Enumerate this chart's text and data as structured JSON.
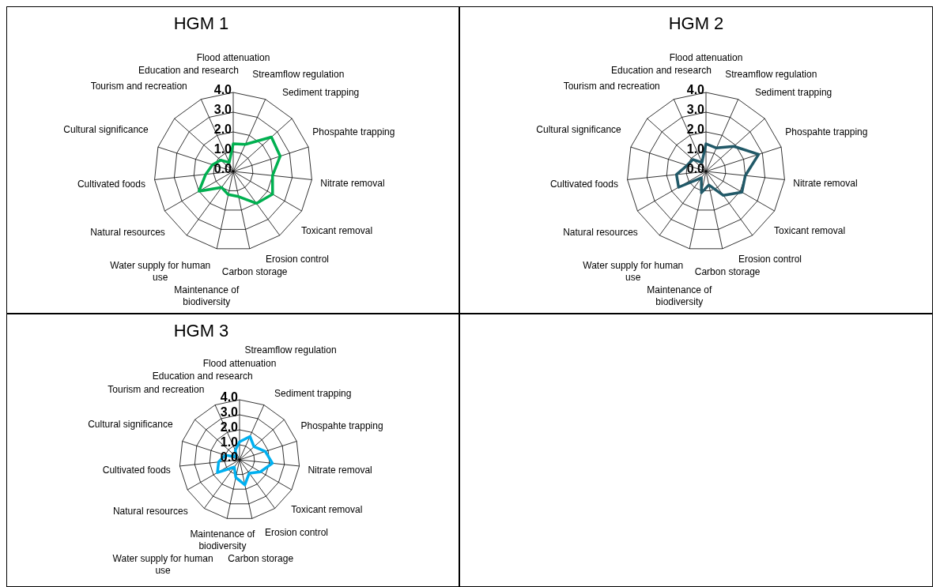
{
  "chart_data": [
    {
      "type": "radar",
      "title": "HGM 1",
      "categories": [
        "Flood attenuation",
        "Streamflow regulation",
        "Sediment trapping",
        "Phospahte trapping",
        "Nitrate removal",
        "Toxicant removal",
        "Erosion control",
        "Carbon storage",
        "Maintenance of biodiversity",
        "Water supply for human use",
        "Natural resources",
        "Cultivated foods",
        "Cultural significance",
        "Tourism and recreation",
        "Education and research"
      ],
      "series": [
        {
          "color": "#00b050",
          "values": [
            1.4,
            1.5,
            2.6,
            2.5,
            2.0,
            2.3,
            2.0,
            1.3,
            1.2,
            1.0,
            2.0,
            1.4,
            1.1,
            0.85,
            0.5
          ]
        }
      ],
      "ylim": [
        0,
        4
      ],
      "yticks": [
        {
          "value": 0,
          "label": "0.0"
        },
        {
          "value": 1,
          "label": "1.0"
        },
        {
          "value": 2,
          "label": "2.0"
        },
        {
          "value": 3,
          "label": "3.0"
        },
        {
          "value": 4,
          "label": "4.0"
        }
      ],
      "grid": true
    },
    {
      "type": "radar",
      "title": "HGM 2",
      "categories": [
        "Flood attenuation",
        "Streamflow regulation",
        "Sediment trapping",
        "Phospahte trapping",
        "Nitrate removal",
        "Toxicant removal",
        "Erosion control",
        "Carbon storage",
        "Maintenance of biodiversity",
        "Water supply for human use",
        "Natural resources",
        "Cultivated foods",
        "Cultural significance",
        "Tourism and recreation",
        "Education and research"
      ],
      "series": [
        {
          "color": "#215968",
          "values": [
            1.4,
            1.3,
            1.9,
            2.8,
            2.0,
            2.1,
            1.5,
            0.7,
            1.1,
            0.4,
            1.6,
            1.5,
            1.0,
            0.9,
            0.5
          ]
        }
      ],
      "ylim": [
        0,
        4
      ],
      "yticks": [
        {
          "value": 0,
          "label": "0.0"
        },
        {
          "value": 1,
          "label": "1.0"
        },
        {
          "value": 2,
          "label": "2.0"
        },
        {
          "value": 3,
          "label": "3.0"
        },
        {
          "value": 4,
          "label": "4.0"
        }
      ],
      "grid": true
    },
    {
      "type": "radar",
      "title": "HGM 3",
      "categories": [
        "Flood attenuation",
        "Streamflow regulation",
        "Sediment trapping",
        "Phospahte trapping",
        "Nitrate removal",
        "Toxicant removal",
        "Erosion control",
        "Carbon storage",
        "Maintenance of biodiversity",
        "Water supply for human use",
        "Natural resources",
        "Cultivated foods",
        "Cultural significance",
        "Tourism and recreation",
        "Education and research"
      ],
      "series": [
        {
          "color": "#00b0f0",
          "values": [
            1.2,
            1.7,
            1.3,
            1.8,
            2.2,
            1.6,
            1.1,
            1.7,
            1.2,
            0.6,
            1.7,
            1.4,
            1.0,
            0.3,
            0.7
          ]
        }
      ],
      "ylim": [
        0,
        4
      ],
      "yticks": [
        {
          "value": 0,
          "label": "0.0"
        },
        {
          "value": 1,
          "label": "1.0"
        },
        {
          "value": 2,
          "label": "2.0"
        },
        {
          "value": 3,
          "label": "3.0"
        },
        {
          "value": 4,
          "label": "4.0"
        }
      ],
      "grid": true
    }
  ]
}
